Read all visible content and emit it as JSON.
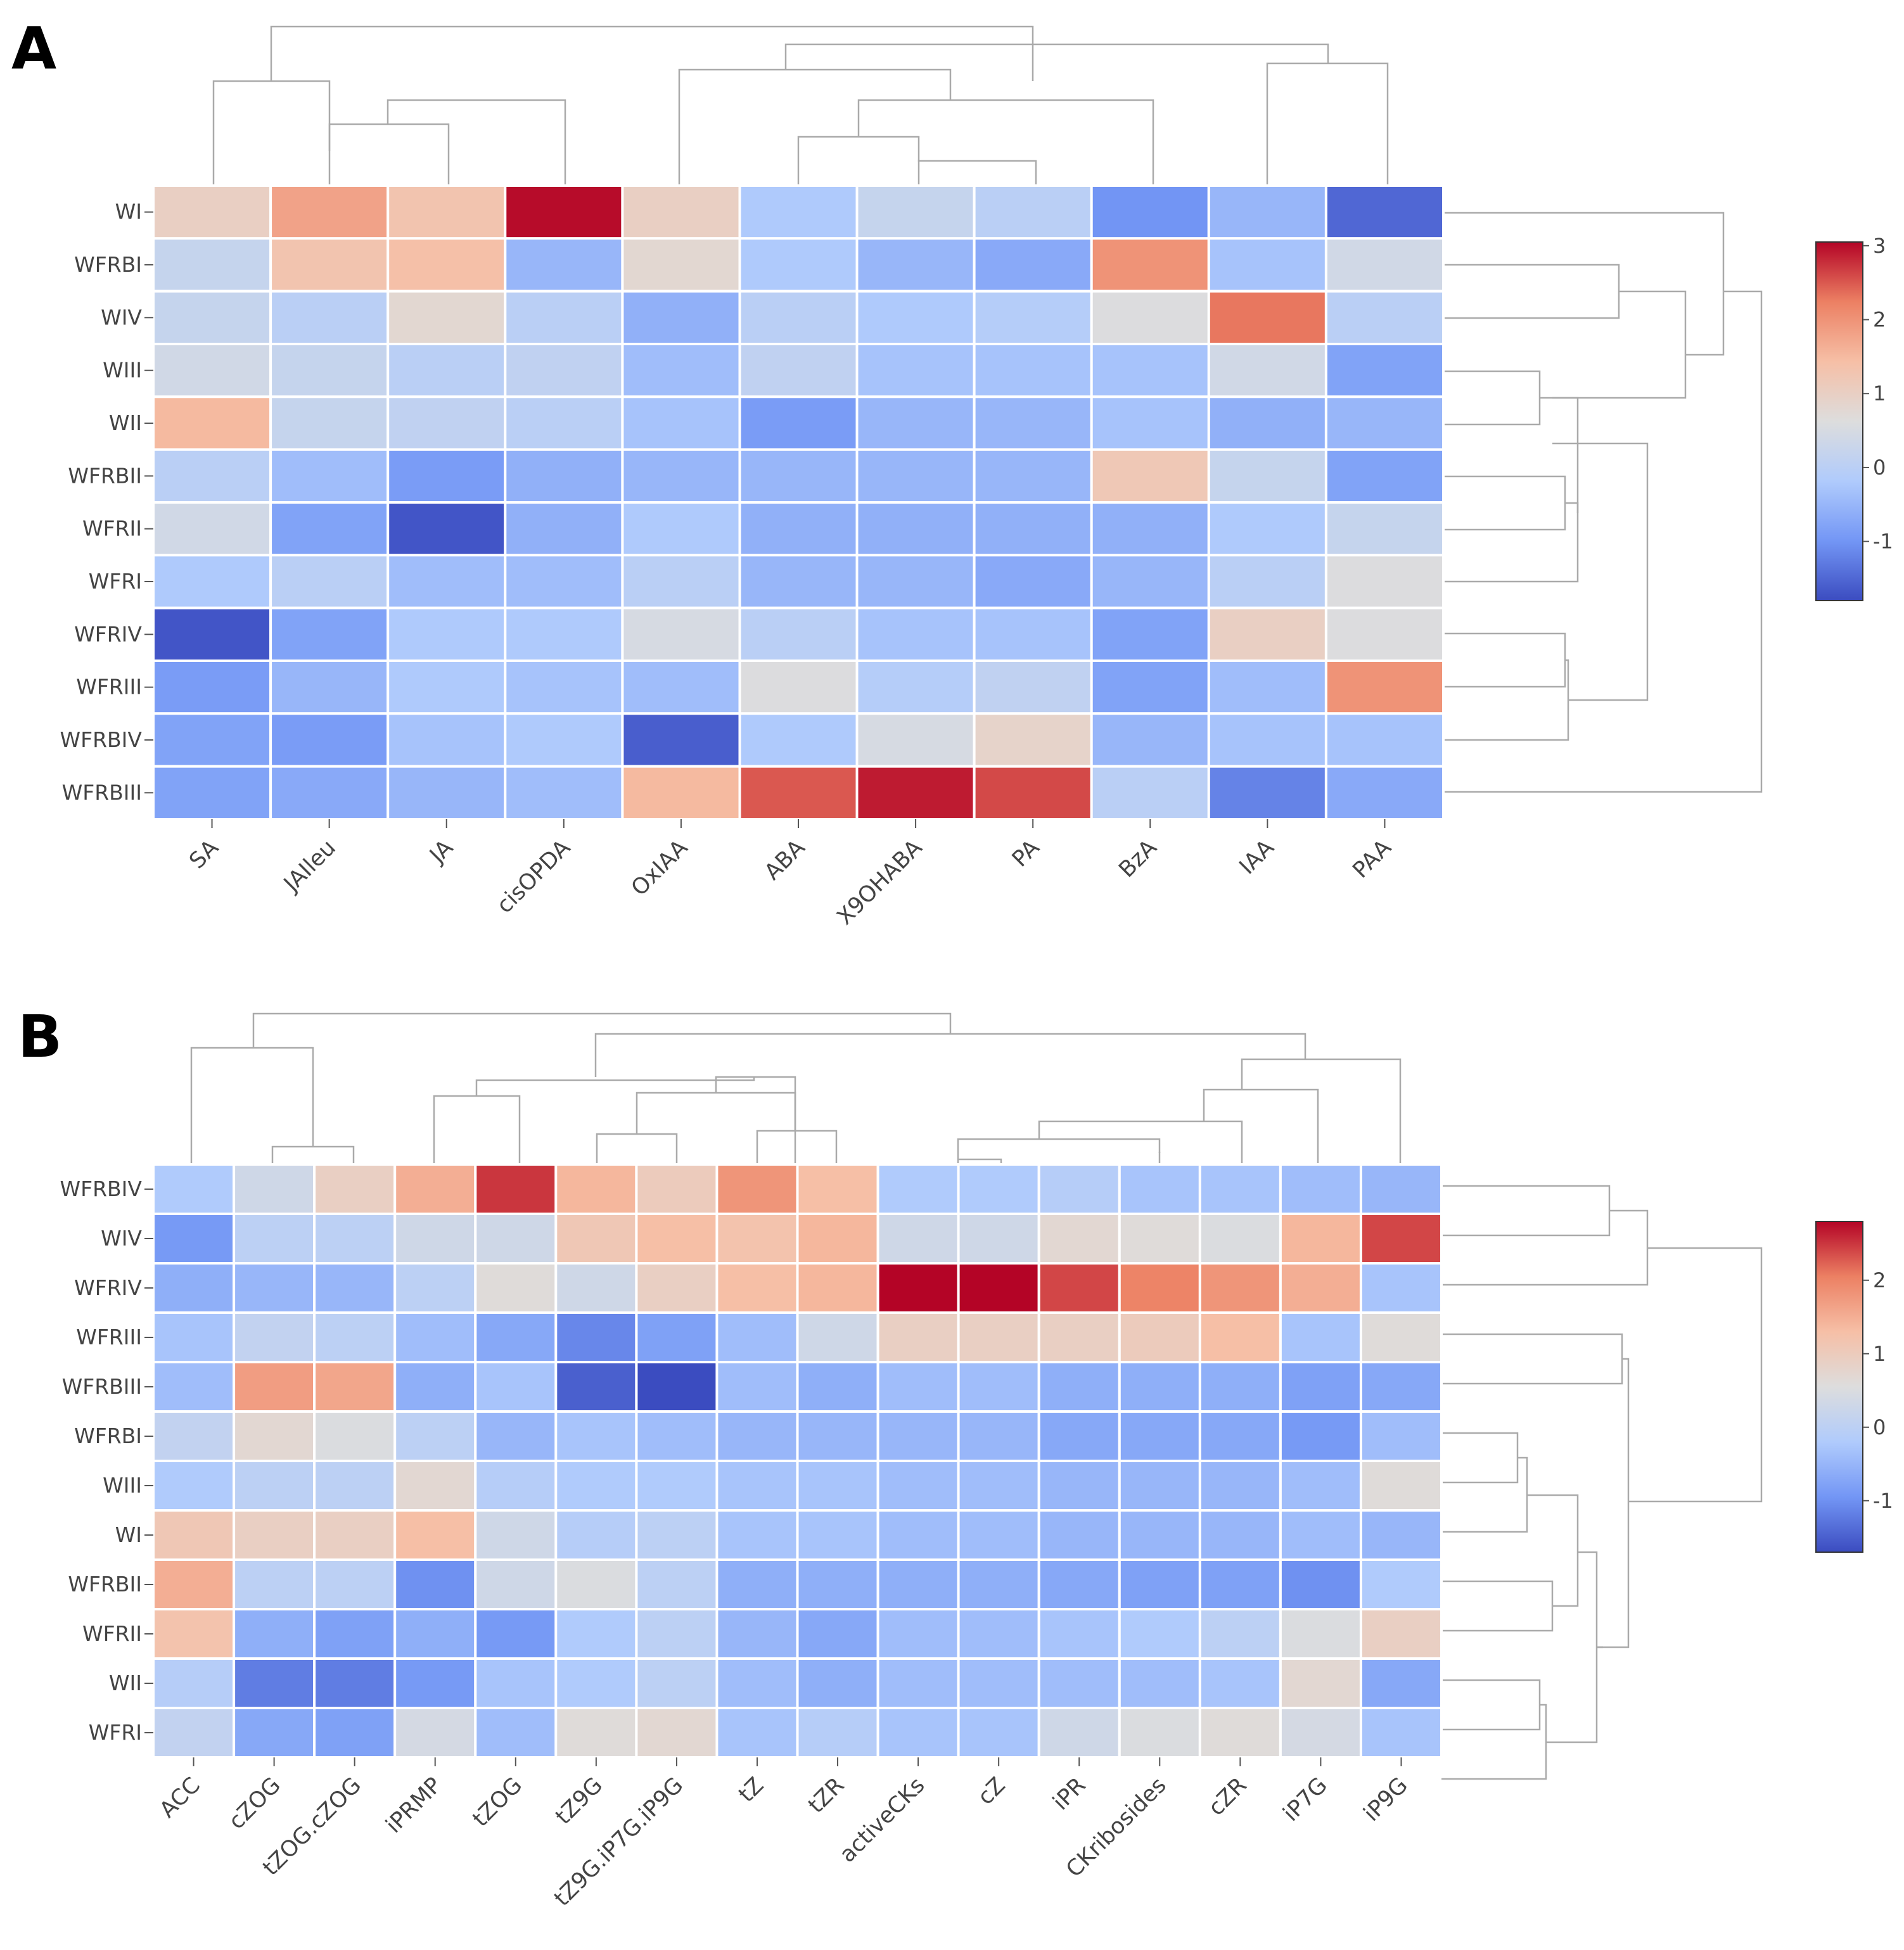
{
  "palette": [
    "#3b4cc0",
    "#7396f5",
    "#b0cbfc",
    "#dddddd",
    "#f6bfa6",
    "#ec8063",
    "#b40426"
  ],
  "chart_data": [
    {
      "type": "heatmap",
      "panel": "A",
      "rows": [
        "WI",
        "WFRBI",
        "WIV",
        "WIII",
        "WII",
        "WFRBII",
        "WFRII",
        "WFRI",
        "WFRIV",
        "WFRIII",
        "WFRBIV",
        "WFRBIII"
      ],
      "columns": [
        "SA",
        "JAIleu",
        "JA",
        "cisOPDA",
        "OxIAA",
        "ABA",
        "X9OHABA",
        "PA",
        "BzA",
        "IAA",
        "PAA"
      ],
      "values": [
        [
          1.0,
          1.8,
          1.3,
          3.0,
          1.0,
          -0.2,
          0.2,
          0.0,
          -1.0,
          -0.5,
          -1.5
        ],
        [
          0.2,
          1.3,
          1.4,
          -0.5,
          0.8,
          -0.2,
          -0.5,
          -0.7,
          2.0,
          -0.3,
          0.4
        ],
        [
          0.2,
          0.0,
          0.8,
          0.0,
          -0.6,
          0.0,
          -0.2,
          -0.1,
          0.6,
          2.3,
          0.0
        ],
        [
          0.4,
          0.2,
          0.0,
          0.1,
          -0.4,
          0.1,
          -0.3,
          -0.3,
          -0.3,
          0.4,
          -0.8
        ],
        [
          1.5,
          0.2,
          0.1,
          0.0,
          -0.3,
          -0.9,
          -0.5,
          -0.5,
          -0.3,
          -0.6,
          -0.5
        ],
        [
          0.0,
          -0.4,
          -0.9,
          -0.6,
          -0.5,
          -0.5,
          -0.5,
          -0.5,
          1.2,
          0.2,
          -0.8
        ],
        [
          0.4,
          -0.8,
          -1.7,
          -0.6,
          -0.2,
          -0.6,
          -0.6,
          -0.6,
          -0.6,
          -0.2,
          0.2
        ],
        [
          -0.2,
          0.0,
          -0.4,
          -0.4,
          0.0,
          -0.5,
          -0.5,
          -0.7,
          -0.5,
          0.0,
          0.6
        ],
        [
          -1.7,
          -0.8,
          -0.2,
          -0.2,
          0.5,
          0.0,
          -0.3,
          -0.3,
          -0.8,
          1.0,
          0.6
        ],
        [
          -0.9,
          -0.5,
          -0.2,
          -0.3,
          -0.4,
          0.6,
          -0.1,
          0.1,
          -0.8,
          -0.4,
          2.0
        ],
        [
          -0.8,
          -0.9,
          -0.3,
          -0.2,
          -1.6,
          -0.2,
          0.5,
          0.9,
          -0.5,
          -0.3,
          -0.3
        ],
        [
          -0.8,
          -0.7,
          -0.5,
          -0.4,
          1.5,
          2.5,
          2.9,
          2.6,
          0.0,
          -1.2,
          -0.7
        ]
      ],
      "colorbar": {
        "ticks": [
          3,
          2,
          1,
          0,
          -1
        ],
        "vmin": -1.8,
        "vmax": 3.05
      }
    },
    {
      "type": "heatmap",
      "panel": "B",
      "rows": [
        "WFRBIV",
        "WIV",
        "WFRIV",
        "WFRIII",
        "WFRBIII",
        "WFRBI",
        "WIII",
        "WI",
        "WFRBII",
        "WFRII",
        "WII",
        "WFRI"
      ],
      "columns": [
        "ACC",
        "cZOG",
        "tZOG.cZOG",
        "iPRMP",
        "tZOG",
        "tZ9G",
        "tZ9G.iP7G.iP9G",
        "tZ",
        "tZR",
        "activeCKs",
        "cZ",
        "iPR",
        "CKribosides",
        "cZR",
        "iP7G",
        "iP9G"
      ],
      "values": [
        [
          -0.2,
          0.3,
          0.9,
          1.5,
          2.5,
          1.4,
          1.0,
          1.8,
          1.3,
          -0.2,
          -0.2,
          -0.1,
          -0.3,
          -0.3,
          -0.4,
          -0.5
        ],
        [
          -0.9,
          0.0,
          0.0,
          0.3,
          0.3,
          1.1,
          1.3,
          1.2,
          1.4,
          0.3,
          0.3,
          0.7,
          0.6,
          0.5,
          1.4,
          2.4
        ],
        [
          -0.6,
          -0.5,
          -0.5,
          0.0,
          0.6,
          0.3,
          0.9,
          1.3,
          1.4,
          2.8,
          2.8,
          2.4,
          2.0,
          1.8,
          1.5,
          -0.3
        ],
        [
          -0.3,
          0.1,
          0.0,
          -0.4,
          -0.7,
          -1.1,
          -0.8,
          -0.4,
          0.3,
          0.9,
          0.9,
          0.9,
          1.0,
          1.3,
          -0.3,
          0.6
        ],
        [
          -0.4,
          1.7,
          1.6,
          -0.6,
          -0.3,
          -1.5,
          -1.7,
          -0.4,
          -0.6,
          -0.4,
          -0.4,
          -0.6,
          -0.6,
          -0.6,
          -0.8,
          -0.7
        ],
        [
          0.1,
          0.7,
          0.5,
          0.0,
          -0.5,
          -0.3,
          -0.4,
          -0.5,
          -0.5,
          -0.5,
          -0.5,
          -0.7,
          -0.7,
          -0.7,
          -0.9,
          -0.4
        ],
        [
          -0.2,
          0.0,
          0.0,
          0.7,
          -0.1,
          -0.2,
          -0.2,
          -0.3,
          -0.3,
          -0.4,
          -0.4,
          -0.5,
          -0.5,
          -0.5,
          -0.4,
          0.6
        ],
        [
          1.1,
          0.9,
          0.9,
          1.3,
          0.3,
          -0.1,
          0.0,
          -0.3,
          -0.3,
          -0.4,
          -0.4,
          -0.5,
          -0.5,
          -0.5,
          -0.4,
          -0.5
        ],
        [
          1.5,
          0.0,
          0.0,
          -1.0,
          0.3,
          0.5,
          0.0,
          -0.6,
          -0.6,
          -0.6,
          -0.6,
          -0.7,
          -0.8,
          -0.8,
          -1.0,
          -0.2
        ],
        [
          1.2,
          -0.6,
          -0.8,
          -0.6,
          -0.9,
          -0.2,
          0.0,
          -0.5,
          -0.7,
          -0.4,
          -0.4,
          -0.3,
          -0.2,
          0.0,
          0.5,
          0.9
        ],
        [
          -0.1,
          -1.2,
          -1.2,
          -0.9,
          -0.3,
          -0.2,
          0.0,
          -0.4,
          -0.6,
          -0.4,
          -0.4,
          -0.4,
          -0.4,
          -0.3,
          0.7,
          -0.7
        ],
        [
          0.1,
          -0.7,
          -0.8,
          0.4,
          -0.4,
          0.6,
          0.7,
          -0.3,
          -0.1,
          -0.3,
          -0.3,
          0.3,
          0.5,
          0.6,
          0.4,
          -0.3
        ]
      ],
      "colorbar": {
        "ticks": [
          2,
          1,
          0,
          -1
        ],
        "vmin": -1.7,
        "vmax": 2.8
      }
    }
  ]
}
